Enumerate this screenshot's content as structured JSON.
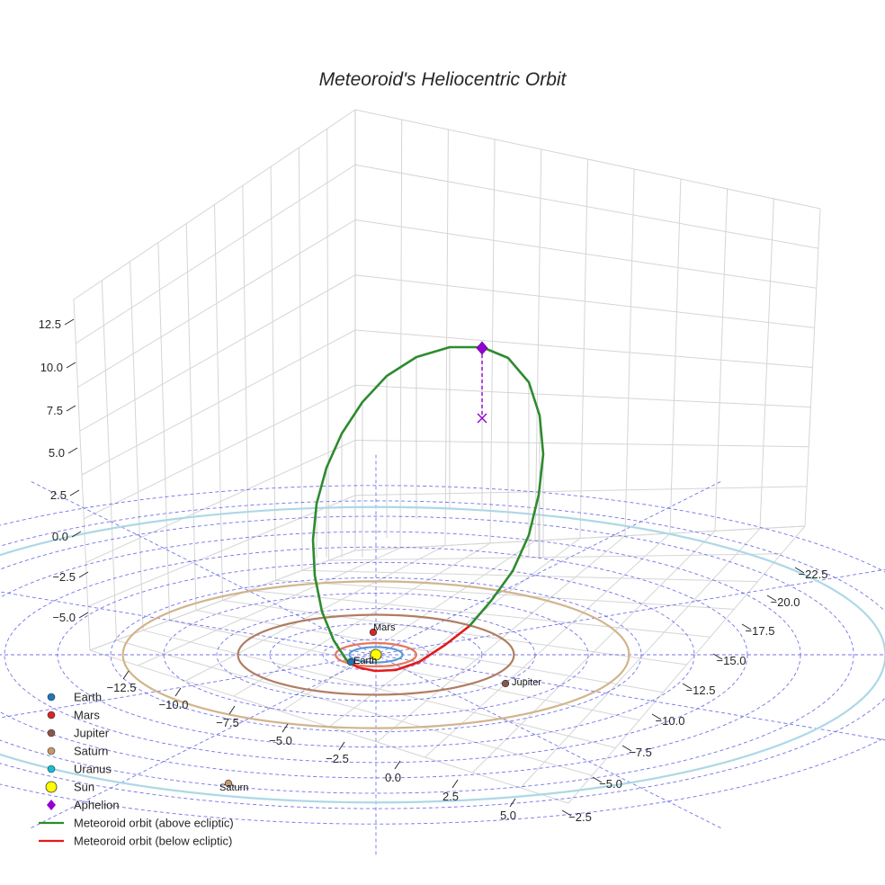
{
  "chart_data": {
    "type": "line",
    "title": "Meteoroid's Heliocentric Orbit",
    "projection": "3d",
    "grid": true,
    "legend_position": "lower-left",
    "axes": {
      "x": {
        "ticks": [
          -2.5,
          -5.0,
          -7.5,
          -10.0,
          -12.5,
          -15.0,
          -17.5,
          -20.0,
          -22.5
        ],
        "tick_labels": [
          "−2.5",
          "−5.0",
          "−7.5",
          "−10.0",
          "−12.5",
          "−15.0",
          "−17.5",
          "−20.0",
          "−22.5"
        ]
      },
      "y": {
        "ticks": [
          5.0,
          2.5,
          0.0,
          -2.5,
          -5.0,
          -7.5,
          -10.0,
          -12.5
        ],
        "tick_labels": [
          "5.0",
          "2.5",
          "0.0",
          "−2.5",
          "−5.0",
          "−7.5",
          "−10.0",
          "−12.5"
        ]
      },
      "z": {
        "ticks": [
          -5.0,
          -2.5,
          0.0,
          2.5,
          5.0,
          7.5,
          10.0,
          12.5
        ],
        "tick_labels": [
          "−5.0",
          "−2.5",
          "0.0",
          "2.5",
          "5.0",
          "7.5",
          "10.0",
          "12.5"
        ]
      }
    },
    "planets": [
      {
        "name": "Earth",
        "label": "Earth",
        "orbit_radius": 1.0,
        "color": "#1f77b4",
        "orbit_color": "#5b9bd5"
      },
      {
        "name": "Mars",
        "label": "Mars",
        "orbit_radius": 1.52,
        "color": "#d62728",
        "orbit_color": "#e8765b"
      },
      {
        "name": "Jupiter",
        "label": "Jupiter",
        "orbit_radius": 5.2,
        "color": "#8c564b",
        "orbit_color": "#b07d62"
      },
      {
        "name": "Saturn",
        "label": "Saturn",
        "orbit_radius": 9.54,
        "color": "#c49a6c",
        "orbit_color": "#d2b48c"
      },
      {
        "name": "Uranus",
        "label": "",
        "orbit_radius": 19.2,
        "color": "#17becf",
        "orbit_color": "#add8e6"
      }
    ],
    "sun": {
      "name": "Sun",
      "color": "#ffff00"
    },
    "aphelion": {
      "name": "Aphelion",
      "color": "#9400d3"
    },
    "meteoroid_orbit": [
      {
        "name": "Meteoroid orbit (above ecliptic)",
        "color": "#2e8b2e"
      },
      {
        "name": "Meteoroid orbit (below ecliptic)",
        "color": "#e31a1c"
      }
    ],
    "legend": [
      {
        "label": "Earth",
        "marker": "circle",
        "color": "#1f77b4"
      },
      {
        "label": "Mars",
        "marker": "circle",
        "color": "#d62728"
      },
      {
        "label": "Jupiter",
        "marker": "circle",
        "color": "#8c564b"
      },
      {
        "label": "Saturn",
        "marker": "circle",
        "color": "#c49a6c"
      },
      {
        "label": "Uranus",
        "marker": "circle",
        "color": "#17becf"
      },
      {
        "label": "Sun",
        "marker": "big-circle",
        "color": "#ffff00"
      },
      {
        "label": "Aphelion",
        "marker": "diamond",
        "color": "#9400d3"
      },
      {
        "label": "Meteoroid orbit (above ecliptic)",
        "marker": "line",
        "color": "#2e8b2e"
      },
      {
        "label": "Meteoroid orbit (below ecliptic)",
        "marker": "line",
        "color": "#e31a1c"
      }
    ]
  }
}
